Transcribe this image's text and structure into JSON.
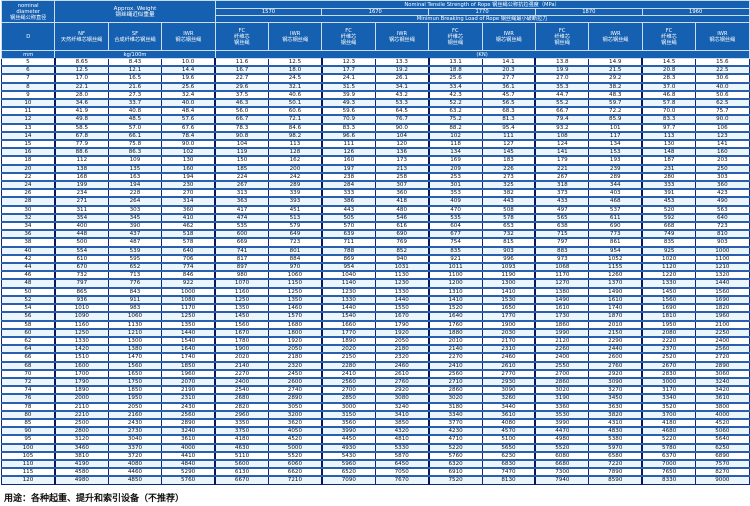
{
  "header": {
    "diameter_title": "nominal\ndiameter\n钢丝绳公称直径",
    "diameter_symbol": "D",
    "diameter_unit": "mm",
    "weight_title": "Approx. Weight\n钢丝绳近似重量",
    "weight_cols": [
      "NF\n天然纤维芯钢丝绳",
      "SF\n合成纤维芯钢丝绳",
      "IWR\n钢芯钢丝绳"
    ],
    "weight_unit": "kg/100m",
    "strength_title": "Nominal Tensile Strength of Rope 钢丝绳公称抗拉强度（MPa）",
    "grades": [
      "1570",
      "1670",
      "1770",
      "1870",
      "1960"
    ],
    "breaking_title": "Minimun Breaking Load of Rope 钢丝绳最小破断拉力",
    "fc_label": "FC\n纤维芯\n钢丝绳",
    "iwr_label": "IWR\n钢芯钢丝绳",
    "breaking_unit": "(KN)"
  },
  "rows": [
    [
      "5",
      "8.65",
      "8.43",
      "10.0",
      "11.6",
      "12.5",
      "12.3",
      "13.3",
      "13.1",
      "14.1",
      "13.8",
      "14.9",
      "14.5",
      "15.6"
    ],
    [
      "6",
      "12.5",
      "12.1",
      "14.4",
      "16.7",
      "18.0",
      "17.7",
      "19.2",
      "18.8",
      "20.3",
      "19.9",
      "21.5",
      "20.8",
      "22.5"
    ],
    [
      "7",
      "17.0",
      "16.5",
      "19.6",
      "22.7",
      "24.5",
      "24.1",
      "26.1",
      "25.6",
      "27.7",
      "27.0",
      "29.2",
      "28.3",
      "30.6"
    ],
    [
      "8",
      "22.1",
      "21.6",
      "25.6",
      "29.6",
      "32.1",
      "31.5",
      "34.1",
      "33.4",
      "36.1",
      "35.3",
      "38.2",
      "37.0",
      "40.0"
    ],
    [
      "9",
      "28.0",
      "27.3",
      "32.4",
      "37.5",
      "40.6",
      "39.9",
      "43.2",
      "42.3",
      "45.7",
      "44.7",
      "48.3",
      "46.8",
      "50.6"
    ],
    [
      "10",
      "34.6",
      "33.7",
      "40.0",
      "46.3",
      "50.1",
      "49.3",
      "53.3",
      "52.2",
      "56.5",
      "55.2",
      "59.7",
      "57.8",
      "62.5"
    ],
    [
      "11",
      "41.9",
      "40.8",
      "48.4",
      "56.0",
      "60.6",
      "59.6",
      "64.5",
      "63.2",
      "68.3",
      "66.7",
      "72.2",
      "70.0",
      "75.7"
    ],
    [
      "12",
      "49.8",
      "48.5",
      "57.6",
      "66.7",
      "72.1",
      "70.9",
      "76.7",
      "75.2",
      "81.3",
      "79.4",
      "85.9",
      "83.3",
      "90.0"
    ],
    [
      "13",
      "58.5",
      "57.0",
      "67.6",
      "78.3",
      "84.6",
      "83.3",
      "90.0",
      "88.2",
      "95.4",
      "93.2",
      "101",
      "97.7",
      "106"
    ],
    [
      "14",
      "67.8",
      "66.1",
      "78.4",
      "90.8",
      "98.2",
      "96.6",
      "104",
      "102",
      "111",
      "108",
      "117",
      "113",
      "123"
    ],
    [
      "15",
      "77.9",
      "75.8",
      "90.0",
      "104",
      "113",
      "111",
      "120",
      "118",
      "127",
      "124",
      "134",
      "130",
      "141"
    ],
    [
      "16",
      "88.6",
      "86.3",
      "102",
      "119",
      "128",
      "126",
      "136",
      "134",
      "145",
      "141",
      "153",
      "148",
      "160"
    ],
    [
      "18",
      "112",
      "109",
      "130",
      "150",
      "162",
      "160",
      "173",
      "169",
      "183",
      "179",
      "193",
      "187",
      "203"
    ],
    [
      "20",
      "138",
      "135",
      "160",
      "185",
      "200",
      "197",
      "213",
      "209",
      "226",
      "221",
      "239",
      "231",
      "250"
    ],
    [
      "22",
      "168",
      "163",
      "194",
      "224",
      "242",
      "238",
      "258",
      "253",
      "273",
      "267",
      "289",
      "280",
      "303"
    ],
    [
      "24",
      "199",
      "194",
      "230",
      "267",
      "289",
      "284",
      "307",
      "301",
      "325",
      "318",
      "344",
      "333",
      "360"
    ],
    [
      "26",
      "234",
      "228",
      "270",
      "313",
      "339",
      "333",
      "360",
      "353",
      "382",
      "373",
      "403",
      "391",
      "423"
    ],
    [
      "28",
      "271",
      "264",
      "314",
      "363",
      "393",
      "386",
      "418",
      "409",
      "443",
      "433",
      "468",
      "453",
      "490"
    ],
    [
      "30",
      "311",
      "303",
      "360",
      "417",
      "451",
      "443",
      "480",
      "470",
      "508",
      "497",
      "537",
      "520",
      "563"
    ],
    [
      "32",
      "354",
      "345",
      "410",
      "474",
      "513",
      "505",
      "546",
      "535",
      "578",
      "565",
      "611",
      "592",
      "640"
    ],
    [
      "34",
      "400",
      "390",
      "462",
      "535",
      "579",
      "570",
      "616",
      "604",
      "653",
      "638",
      "690",
      "668",
      "723"
    ],
    [
      "36",
      "448",
      "437",
      "518",
      "600",
      "649",
      "639",
      "690",
      "677",
      "732",
      "715",
      "773",
      "749",
      "810"
    ],
    [
      "38",
      "500",
      "487",
      "578",
      "669",
      "723",
      "711",
      "769",
      "754",
      "815",
      "797",
      "861",
      "835",
      "903"
    ],
    [
      "40",
      "554",
      "539",
      "640",
      "741",
      "801",
      "788",
      "852",
      "835",
      "903",
      "883",
      "954",
      "925",
      "1000"
    ],
    [
      "42",
      "610",
      "595",
      "706",
      "817",
      "884",
      "869",
      "940",
      "921",
      "996",
      "973",
      "1052",
      "1020",
      "1100"
    ],
    [
      "44",
      "670",
      "652",
      "774",
      "897",
      "970",
      "954",
      "1031",
      "1011",
      "1093",
      "1068",
      "1155",
      "1120",
      "1210"
    ],
    [
      "46",
      "732",
      "713",
      "846",
      "980",
      "1060",
      "1040",
      "1130",
      "1100",
      "1190",
      "1170",
      "1260",
      "1220",
      "1320"
    ],
    [
      "48",
      "797",
      "776",
      "922",
      "1070",
      "1150",
      "1140",
      "1230",
      "1200",
      "1300",
      "1270",
      "1370",
      "1330",
      "1440"
    ],
    [
      "50",
      "865",
      "843",
      "1000",
      "1160",
      "1250",
      "1230",
      "1330",
      "1310",
      "1410",
      "1380",
      "1490",
      "1450",
      "1560"
    ],
    [
      "52",
      "936",
      "911",
      "1080",
      "1250",
      "1350",
      "1330",
      "1440",
      "1410",
      "1530",
      "1490",
      "1610",
      "1560",
      "1690"
    ],
    [
      "54",
      "1010",
      "983",
      "1170",
      "1350",
      "1460",
      "1440",
      "1550",
      "1520",
      "1650",
      "1610",
      "1740",
      "1690",
      "1820"
    ],
    [
      "56",
      "1090",
      "1060",
      "1250",
      "1450",
      "1570",
      "1540",
      "1670",
      "1640",
      "1770",
      "1730",
      "1870",
      "1810",
      "1960"
    ],
    [
      "58",
      "1160",
      "1130",
      "1350",
      "1560",
      "1680",
      "1660",
      "1790",
      "1760",
      "1900",
      "1860",
      "2010",
      "1950",
      "2100"
    ],
    [
      "60",
      "1250",
      "1210",
      "1440",
      "1670",
      "1800",
      "1770",
      "1920",
      "1880",
      "2030",
      "1990",
      "2150",
      "2080",
      "2250"
    ],
    [
      "62",
      "1330",
      "1300",
      "1540",
      "1780",
      "1920",
      "1890",
      "2050",
      "2010",
      "2170",
      "2120",
      "2290",
      "2220",
      "2400"
    ],
    [
      "64",
      "1420",
      "1380",
      "1640",
      "1900",
      "2050",
      "2020",
      "2180",
      "2140",
      "2310",
      "2260",
      "2440",
      "2370",
      "2560"
    ],
    [
      "66",
      "1510",
      "1470",
      "1740",
      "2020",
      "2180",
      "2150",
      "2320",
      "2270",
      "2460",
      "2400",
      "2600",
      "2520",
      "2720"
    ],
    [
      "68",
      "1600",
      "1560",
      "1850",
      "2140",
      "2320",
      "2280",
      "2460",
      "2410",
      "2610",
      "2550",
      "2760",
      "2670",
      "2890"
    ],
    [
      "70",
      "1700",
      "1650",
      "1960",
      "2270",
      "2450",
      "2410",
      "2610",
      "2560",
      "2770",
      "2700",
      "2920",
      "2830",
      "3060"
    ],
    [
      "72",
      "1790",
      "1750",
      "2070",
      "2400",
      "2600",
      "2560",
      "2760",
      "2710",
      "2930",
      "2860",
      "3090",
      "3000",
      "3240"
    ],
    [
      "74",
      "1890",
      "1850",
      "2190",
      "2540",
      "2740",
      "2700",
      "2920",
      "2860",
      "3090",
      "3020",
      "3270",
      "3170",
      "3420"
    ],
    [
      "76",
      "2000",
      "1950",
      "2310",
      "2680",
      "2890",
      "2850",
      "3080",
      "3020",
      "3260",
      "3190",
      "3450",
      "3340",
      "3610"
    ],
    [
      "78",
      "2110",
      "2050",
      "2430",
      "2820",
      "3050",
      "3000",
      "3240",
      "3180",
      "3440",
      "3360",
      "3630",
      "3520",
      "3800"
    ],
    [
      "80",
      "2210",
      "2160",
      "2560",
      "2960",
      "3200",
      "3150",
      "3410",
      "3340",
      "3610",
      "3530",
      "3820",
      "3700",
      "4000"
    ],
    [
      "85",
      "2500",
      "2430",
      "2890",
      "3350",
      "3620",
      "3560",
      "3850",
      "3770",
      "4080",
      "3990",
      "4310",
      "4180",
      "4520"
    ],
    [
      "90",
      "2800",
      "2730",
      "3240",
      "3750",
      "4050",
      "3990",
      "4320",
      "4230",
      "4570",
      "4470",
      "4830",
      "4680",
      "5060"
    ],
    [
      "95",
      "3120",
      "3040",
      "3610",
      "4180",
      "4520",
      "4450",
      "4810",
      "4710",
      "5100",
      "4980",
      "5380",
      "5220",
      "5640"
    ],
    [
      "100",
      "3460",
      "3370",
      "4000",
      "4630",
      "5000",
      "4930",
      "5330",
      "5220",
      "5650",
      "5520",
      "5970",
      "5780",
      "6250"
    ],
    [
      "105",
      "3810",
      "3720",
      "4410",
      "5110",
      "5520",
      "5430",
      "5870",
      "5760",
      "6230",
      "6080",
      "6580",
      "6370",
      "6890"
    ],
    [
      "110",
      "4190",
      "4080",
      "4840",
      "5600",
      "6060",
      "5960",
      "6450",
      "6320",
      "6830",
      "6680",
      "7220",
      "7000",
      "7570"
    ],
    [
      "115",
      "4580",
      "4460",
      "5290",
      "6130",
      "6620",
      "6520",
      "7050",
      "6910",
      "7470",
      "7300",
      "7890",
      "7650",
      "8270"
    ],
    [
      "120",
      "4980",
      "4850",
      "5760",
      "6670",
      "7210",
      "7090",
      "7670",
      "7520",
      "8130",
      "7940",
      "8590",
      "8330",
      "9000"
    ]
  ],
  "footer": "用途：各种起重、提升和索引设备（不推荐）",
  "colors": {
    "header_bg": "#1560b0",
    "stripe": "#eaf5fc",
    "border": "#0b2a7a"
  }
}
